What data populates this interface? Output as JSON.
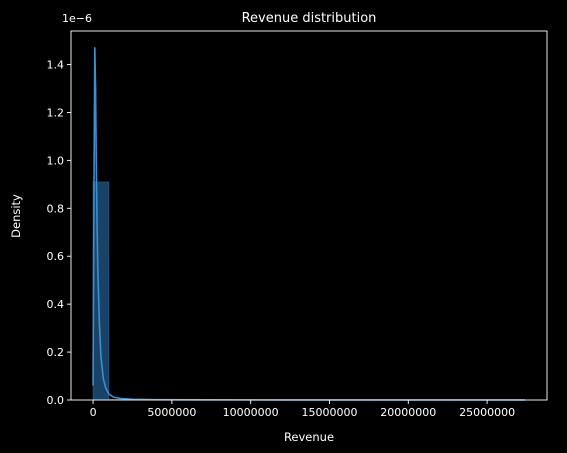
{
  "chart_data": {
    "type": "histogram",
    "title": "Revenue distribution",
    "xlabel": "Revenue",
    "ylabel": "Density",
    "y_offset_label": "1e−6",
    "xlim": [
      -1400000,
      28800000
    ],
    "ylim": [
      0,
      1.54
    ],
    "x_ticks": [
      0,
      5000000,
      10000000,
      15000000,
      20000000,
      25000000
    ],
    "x_tick_labels": [
      "0",
      "5000000",
      "10000000",
      "15000000",
      "20000000",
      "25000000"
    ],
    "y_ticks": [
      0.0,
      0.2,
      0.4,
      0.6,
      0.8,
      1.0,
      1.2,
      1.4
    ],
    "y_tick_labels": [
      "0.0",
      "0.2",
      "0.4",
      "0.6",
      "0.8",
      "1.0",
      "1.2",
      "1.4"
    ],
    "bins": [
      {
        "x0": 0,
        "x1": 1000000,
        "density": 0.91
      },
      {
        "x0": 1000000,
        "x1": 2000000,
        "density": 0.002
      }
    ],
    "kde": {
      "x": [
        0,
        60000,
        110000,
        160000,
        200000,
        250000,
        300000,
        400000,
        500000,
        650000,
        800000,
        1000000,
        1300000,
        1800000,
        2500000,
        4000000,
        7000000,
        12000000,
        18000000,
        24000000,
        27400000
      ],
      "y": [
        0.06,
        0.9,
        1.47,
        1.3,
        1.0,
        0.75,
        0.55,
        0.32,
        0.18,
        0.09,
        0.05,
        0.025,
        0.012,
        0.006,
        0.003,
        0.0015,
        0.0008,
        0.0004,
        0.0002,
        0.0001,
        0.0001
      ]
    },
    "grid": false,
    "colors": {
      "background": "#000000",
      "axes": "#ffffff",
      "bar_fill": "#1f4d78",
      "bar_edge": "#2a6496",
      "line": "#3a8fd0"
    }
  }
}
